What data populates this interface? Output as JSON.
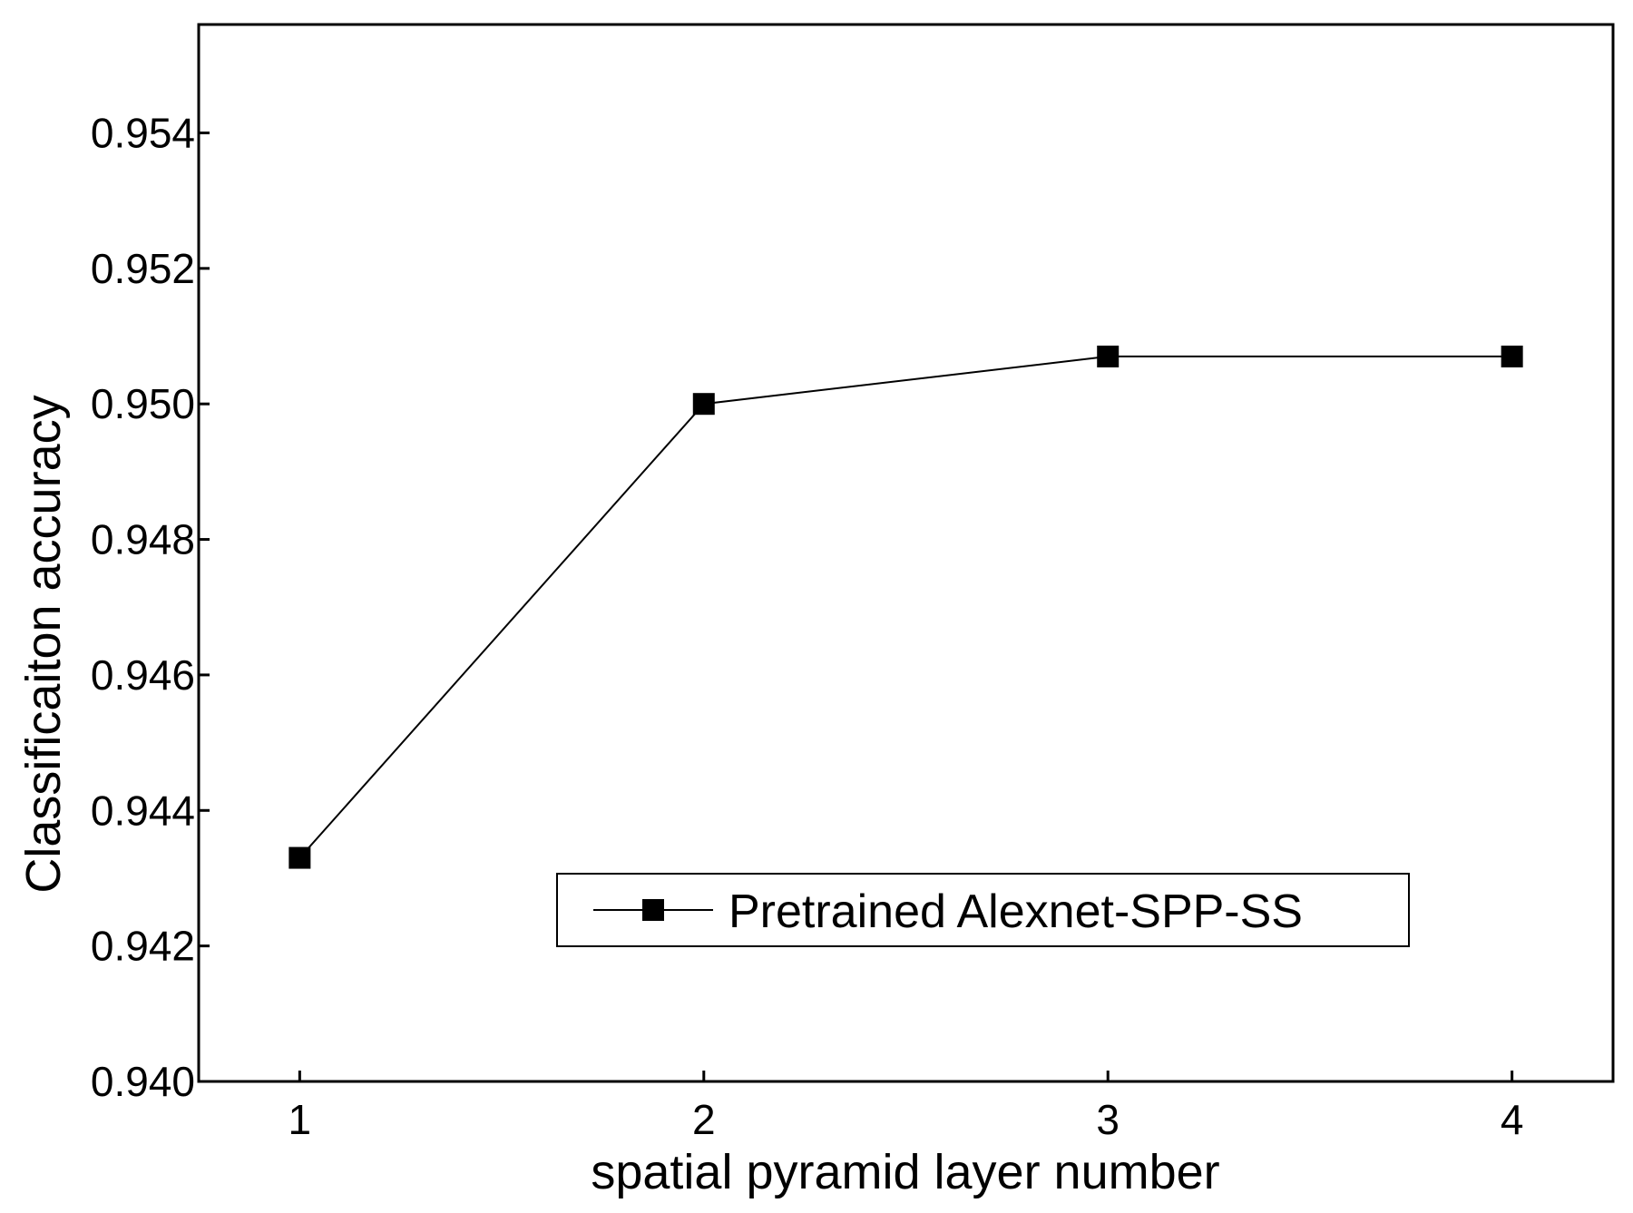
{
  "chart_data": {
    "type": "line",
    "title": "",
    "xlabel": "spatial pyramid layer number",
    "ylabel": "Classificaiton accuracy",
    "x": [
      1,
      2,
      3,
      4
    ],
    "xlim": [
      0.75,
      4.25
    ],
    "ylim": [
      0.94,
      0.9556
    ],
    "x_ticks": [
      "1",
      "2",
      "3",
      "4"
    ],
    "y_ticks": [
      "0.940",
      "0.942",
      "0.944",
      "0.946",
      "0.948",
      "0.950",
      "0.952",
      "0.954"
    ],
    "series": [
      {
        "name": "Pretrained Alexnet-SPP-SS",
        "marker": "square",
        "color": "#000000",
        "values": [
          0.9433,
          0.95,
          0.9507,
          0.9507
        ]
      }
    ],
    "legend": {
      "position": "bottom-right",
      "entries": [
        "Pretrained Alexnet-SPP-SS"
      ]
    },
    "grid": false
  }
}
